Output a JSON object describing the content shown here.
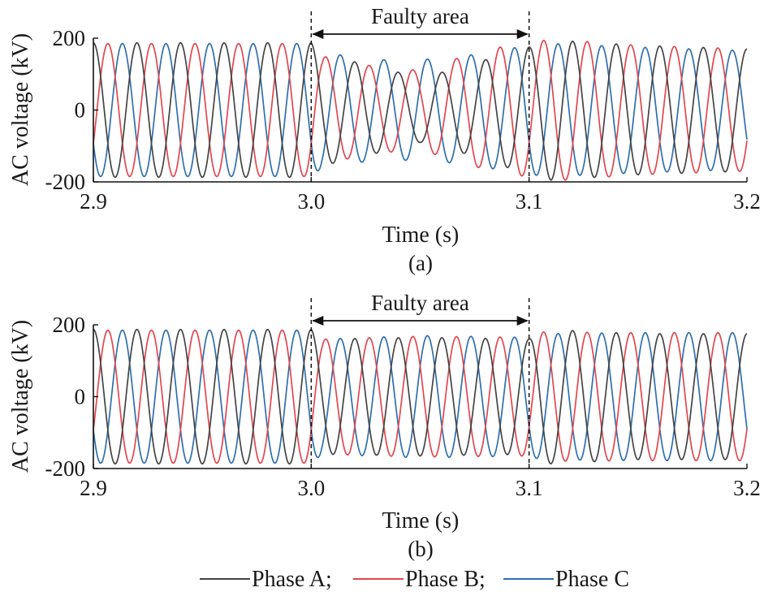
{
  "legend": [
    {
      "label": "Phase A;",
      "color": "#444444"
    },
    {
      "label": "Phase B;",
      "color": "#e0474f"
    },
    {
      "label": "Phase C",
      "color": "#2f6fad"
    }
  ],
  "chart_data": [
    {
      "type": "line",
      "caption": "(a)",
      "xlabel": "Time (s)",
      "ylabel": "AC voltage (kV)",
      "xlim": [
        2.9,
        3.2
      ],
      "ylim": [
        -200,
        200
      ],
      "xticks": [
        "2.9",
        "3.0",
        "3.1",
        "3.2"
      ],
      "yticks": [
        "-200",
        "0",
        "200"
      ],
      "frequency_hz": 50,
      "series": [
        {
          "name": "Phase A",
          "color": "#444444",
          "phase_deg": 90
        },
        {
          "name": "Phase B",
          "color": "#e0474f",
          "phase_deg": -30
        },
        {
          "name": "Phase C",
          "color": "#2f6fad",
          "phase_deg": 210
        }
      ],
      "fault_window": {
        "start": 3.0,
        "end": 3.1,
        "label": "Faulty area"
      },
      "envelope": {
        "Phase A": [
          [
            2.9,
            187
          ],
          [
            3.0,
            187
          ],
          [
            3.005,
            155
          ],
          [
            3.03,
            120
          ],
          [
            3.05,
            90
          ],
          [
            3.07,
            120
          ],
          [
            3.09,
            160
          ],
          [
            3.1,
            175
          ],
          [
            3.11,
            195
          ],
          [
            3.15,
            180
          ],
          [
            3.2,
            170
          ]
        ],
        "Phase B": [
          [
            2.9,
            185
          ],
          [
            3.0,
            185
          ],
          [
            3.005,
            150
          ],
          [
            3.03,
            120
          ],
          [
            3.05,
            110
          ],
          [
            3.07,
            150
          ],
          [
            3.09,
            180
          ],
          [
            3.1,
            185
          ],
          [
            3.11,
            198
          ],
          [
            3.15,
            180
          ],
          [
            3.2,
            170
          ]
        ],
        "Phase C": [
          [
            2.9,
            185
          ],
          [
            3.0,
            185
          ],
          [
            3.005,
            160
          ],
          [
            3.03,
            140
          ],
          [
            3.05,
            140
          ],
          [
            3.07,
            150
          ],
          [
            3.09,
            170
          ],
          [
            3.1,
            180
          ],
          [
            3.11,
            185
          ],
          [
            3.15,
            175
          ],
          [
            3.2,
            165
          ]
        ]
      }
    },
    {
      "type": "line",
      "caption": "(b)",
      "xlabel": "Time (s)",
      "ylabel": "AC voltage (kV)",
      "xlim": [
        2.9,
        3.2
      ],
      "ylim": [
        -200,
        200
      ],
      "xticks": [
        "2.9",
        "3.0",
        "3.1",
        "3.2"
      ],
      "yticks": [
        "-200",
        "0",
        "200"
      ],
      "frequency_hz": 50,
      "series": [
        {
          "name": "Phase A",
          "color": "#444444",
          "phase_deg": 90
        },
        {
          "name": "Phase B",
          "color": "#e0474f",
          "phase_deg": -30
        },
        {
          "name": "Phase C",
          "color": "#2f6fad",
          "phase_deg": 210
        }
      ],
      "fault_window": {
        "start": 3.0,
        "end": 3.1,
        "label": "Faulty area"
      },
      "envelope": {
        "Phase A": [
          [
            2.9,
            187
          ],
          [
            3.0,
            187
          ],
          [
            3.005,
            160
          ],
          [
            3.05,
            165
          ],
          [
            3.1,
            160
          ],
          [
            3.105,
            188
          ],
          [
            3.15,
            175
          ],
          [
            3.2,
            175
          ]
        ],
        "Phase B": [
          [
            2.9,
            185
          ],
          [
            3.0,
            185
          ],
          [
            3.005,
            160
          ],
          [
            3.05,
            168
          ],
          [
            3.1,
            165
          ],
          [
            3.105,
            180
          ],
          [
            3.15,
            178
          ],
          [
            3.2,
            178
          ]
        ],
        "Phase C": [
          [
            2.9,
            185
          ],
          [
            3.0,
            185
          ],
          [
            3.005,
            160
          ],
          [
            3.05,
            170
          ],
          [
            3.1,
            165
          ],
          [
            3.105,
            175
          ],
          [
            3.15,
            178
          ],
          [
            3.2,
            178
          ]
        ]
      }
    }
  ]
}
